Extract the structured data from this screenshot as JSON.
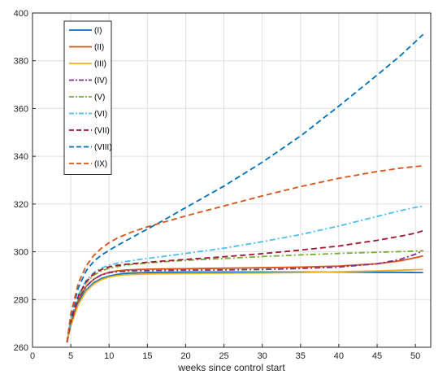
{
  "chart_data": {
    "type": "line",
    "title": "",
    "xlabel": "weeks since control start",
    "ylabel": "",
    "xlim": [
      0,
      52
    ],
    "ylim": [
      260,
      400
    ],
    "xticks": [
      0,
      5,
      10,
      15,
      20,
      25,
      30,
      35,
      40,
      45,
      50
    ],
    "yticks": [
      260,
      280,
      300,
      320,
      340,
      360,
      380,
      400
    ],
    "grid": true,
    "legend_position": "top-left",
    "x": [
      4.5,
      5,
      6,
      7,
      8,
      9,
      10,
      11,
      12,
      13,
      14,
      15,
      17,
      20,
      25,
      30,
      35,
      40,
      45,
      48,
      50,
      51
    ],
    "series": [
      {
        "name": "(I)",
        "color": "#0072BD",
        "dash": "solid",
        "values": [
          262,
          270,
          279,
          284,
          287,
          288.8,
          289.8,
          290.5,
          290.9,
          291.1,
          291.2,
          291.3,
          291.4,
          291.5,
          291.5,
          291.5,
          291.5,
          291.5,
          291.4,
          291.4,
          291.3,
          291.3
        ]
      },
      {
        "name": "(II)",
        "color": "#D95319",
        "dash": "solid",
        "values": [
          262,
          270,
          280,
          285.5,
          288.5,
          290.3,
          291.4,
          292,
          292.3,
          292.5,
          292.6,
          292.7,
          292.8,
          292.9,
          293.1,
          293.3,
          293.6,
          294,
          295,
          296.2,
          297.5,
          298.3
        ]
      },
      {
        "name": "(III)",
        "color": "#EDB120",
        "dash": "solid",
        "values": [
          262,
          269,
          278,
          283.5,
          286.5,
          288.3,
          289.4,
          290,
          290.3,
          290.5,
          290.6,
          290.7,
          290.8,
          290.9,
          291,
          291.1,
          291.3,
          291.6,
          292,
          292.3,
          292.5,
          292.6
        ]
      },
      {
        "name": "(IV)",
        "color": "#7E2F8E",
        "dash": "dashdot",
        "values": [
          262,
          270,
          280,
          285.5,
          288.5,
          290.3,
          291.2,
          291.6,
          291.8,
          292,
          292.1,
          292.1,
          292.2,
          292.3,
          292.4,
          292.6,
          293,
          293.6,
          295,
          296.8,
          299,
          300.5
        ]
      },
      {
        "name": "(V)",
        "color": "#77AC30",
        "dash": "dashdot",
        "values": [
          262,
          271,
          281,
          287,
          290.2,
          292,
          293.1,
          293.8,
          294.3,
          294.7,
          295,
          295.3,
          295.8,
          296.4,
          297.2,
          298,
          298.7,
          299.3,
          299.8,
          300.1,
          300.3,
          300.4
        ]
      },
      {
        "name": "(VI)",
        "color": "#4DBEEE",
        "dash": "dashdot",
        "values": [
          262,
          272,
          282,
          288,
          291.3,
          293.2,
          294.4,
          295.2,
          295.8,
          296.3,
          296.8,
          297.2,
          298,
          299.3,
          301.5,
          304.2,
          307.2,
          310.8,
          314.8,
          317.2,
          318.6,
          319.1
        ]
      },
      {
        "name": "(VII)",
        "color": "#A2142F",
        "dash": "dashed",
        "values": [
          262,
          271,
          281.5,
          287.5,
          290.8,
          292.6,
          293.7,
          294.3,
          294.7,
          295,
          295.3,
          295.6,
          296.1,
          296.8,
          297.9,
          299.2,
          300.7,
          302.4,
          304.8,
          306.5,
          307.8,
          308.8
        ]
      },
      {
        "name": "(VIII)",
        "color": "#0072BD",
        "dash": "dashed",
        "values": [
          262,
          273,
          285,
          292,
          296,
          298.6,
          300.6,
          302.5,
          304.3,
          306,
          307.8,
          309.5,
          313,
          318.5,
          327.5,
          337.5,
          348.5,
          361,
          374,
          382,
          388,
          391
        ]
      },
      {
        "name": "(IX)",
        "color": "#D95319",
        "dash": "dashed",
        "values": [
          262,
          274,
          287,
          294,
          298.5,
          301.5,
          303.8,
          305.6,
          307,
          308.3,
          309.4,
          310.4,
          312.3,
          315,
          319.2,
          323.4,
          327.3,
          330.8,
          333.6,
          335,
          335.7,
          336
        ]
      }
    ]
  }
}
